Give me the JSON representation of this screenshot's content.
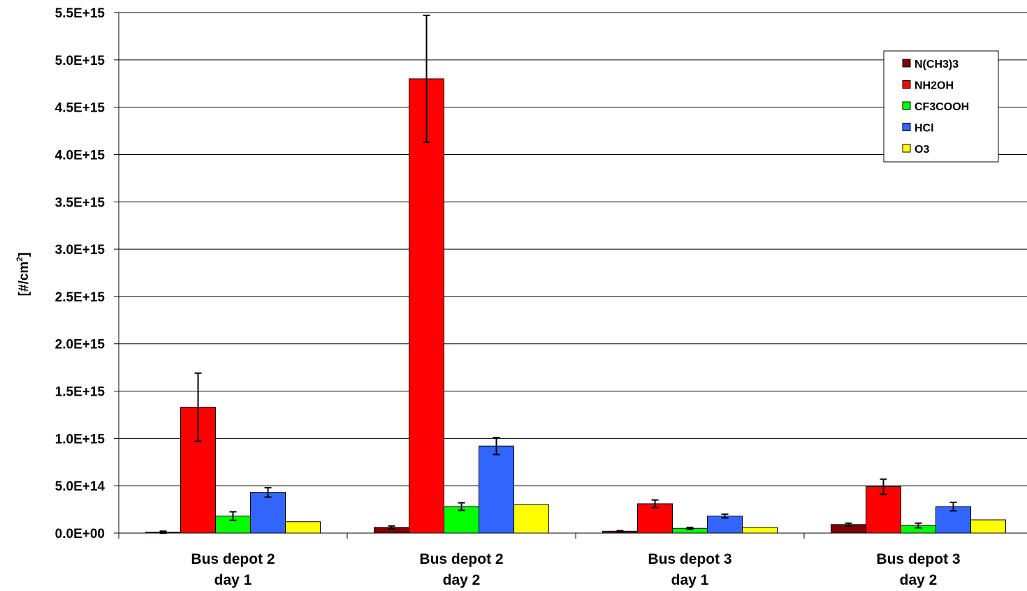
{
  "chart_data": {
    "type": "bar",
    "title": "",
    "xlabel": "",
    "ylabel": {
      "main": "[#/cm",
      "sup": "2",
      "close": "]"
    },
    "ylim": [
      0,
      5500000000000000.0
    ],
    "yticks": [
      {
        "value": 0,
        "label": "0.0E+00"
      },
      {
        "value": 500000000000000.0,
        "label": "5.0E+14"
      },
      {
        "value": 1000000000000000.0,
        "label": "1.0E+15"
      },
      {
        "value": 1500000000000000.0,
        "label": "1.5E+15"
      },
      {
        "value": 2000000000000000.0,
        "label": "2.0E+15"
      },
      {
        "value": 2500000000000000.0,
        "label": "2.5E+15"
      },
      {
        "value": 3000000000000000.0,
        "label": "3.0E+15"
      },
      {
        "value": 3500000000000000.0,
        "label": "3.5E+15"
      },
      {
        "value": 4000000000000000.0,
        "label": "4.0E+15"
      },
      {
        "value": 4500000000000000.0,
        "label": "4.5E+15"
      },
      {
        "value": 5000000000000000.0,
        "label": "5.0E+15"
      },
      {
        "value": 5500000000000000.0,
        "label": "5.5E+15"
      }
    ],
    "categories": [
      [
        "Bus depot 2",
        "day 1"
      ],
      [
        "Bus depot 2",
        "day 2"
      ],
      [
        "Bus depot 3",
        "day 1"
      ],
      [
        "Bus depot 3",
        "day 2"
      ]
    ],
    "grid": true,
    "legend": "top-right",
    "series": [
      {
        "name": "N(CH3)3",
        "color": "#800000",
        "values": [
          10000000000000.0,
          60000000000000.0,
          20000000000000.0,
          90000000000000.0
        ],
        "errors": [
          10000000000000.0,
          15000000000000.0,
          5000000000000.0,
          15000000000000.0
        ]
      },
      {
        "name": "NH2OH",
        "color": "#ff0000",
        "values": [
          1330000000000000.0,
          4800000000000000.0,
          310000000000000.0,
          490000000000000.0
        ],
        "errors": [
          360000000000000.0,
          670000000000000.0,
          40000000000000.0,
          80000000000000.0
        ]
      },
      {
        "name": "CF3COOH",
        "color": "#00ff00",
        "values": [
          180000000000000.0,
          280000000000000.0,
          50000000000000.0,
          80000000000000.0
        ],
        "errors": [
          45000000000000.0,
          40000000000000.0,
          10000000000000.0,
          25000000000000.0
        ]
      },
      {
        "name": "HCl",
        "color": "#3366ff",
        "values": [
          430000000000000.0,
          920000000000000.0,
          180000000000000.0,
          280000000000000.0
        ],
        "errors": [
          50000000000000.0,
          90000000000000.0,
          20000000000000.0,
          45000000000000.0
        ]
      },
      {
        "name": "O3",
        "color": "#ffff00",
        "values": [
          120000000000000.0,
          300000000000000.0,
          60000000000000.0,
          140000000000000.0
        ],
        "errors": null
      }
    ]
  }
}
